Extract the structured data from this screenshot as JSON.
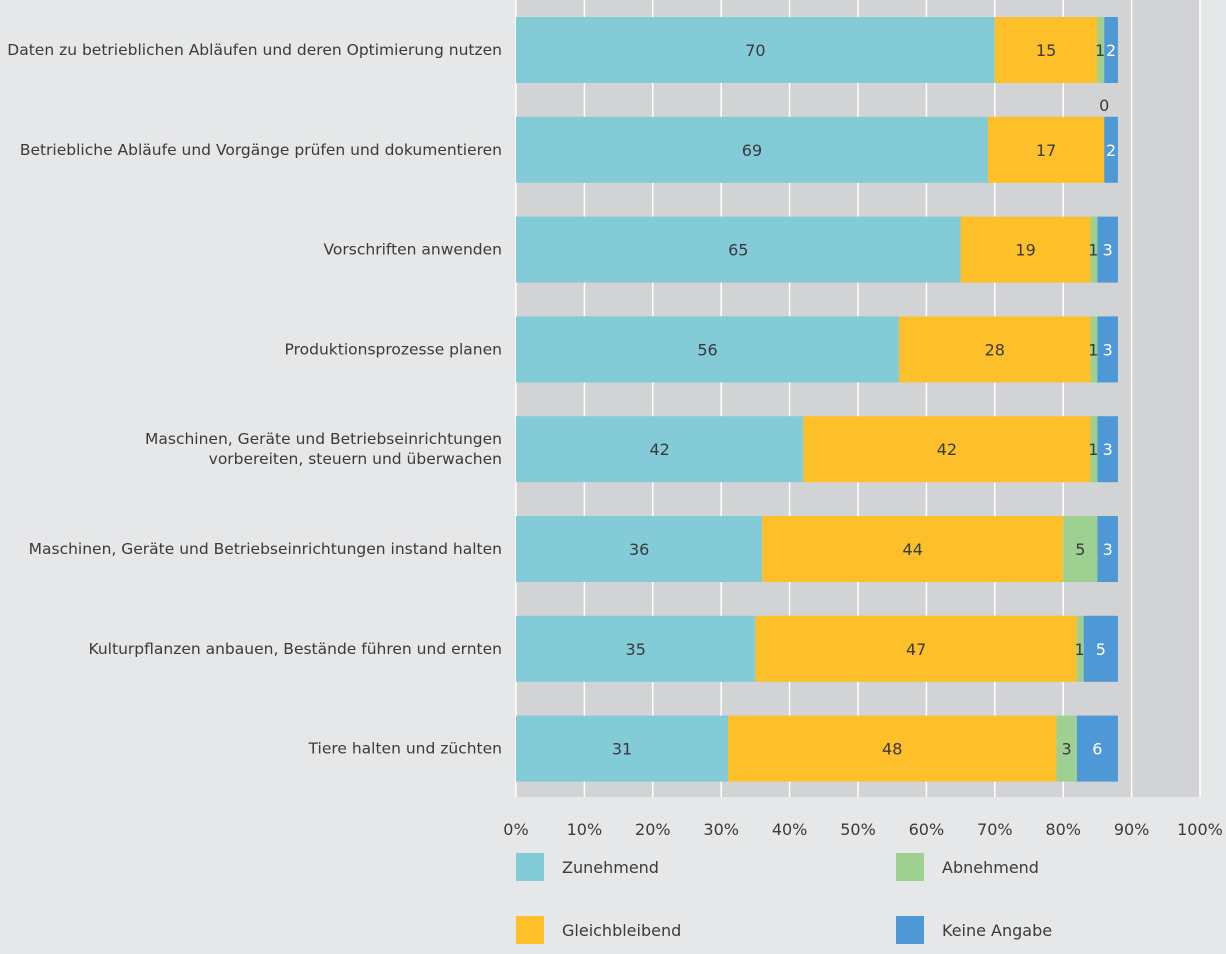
{
  "chart_data": {
    "type": "bar",
    "orientation": "horizontal",
    "stacked": true,
    "percent_stacked": true,
    "categories": [
      "Daten zu betrieblichen Abläufen und deren Optimierung nutzen",
      "Betriebliche Abläufe und Vorgänge prüfen und dokumentieren",
      "Vorschriften anwenden",
      "Produktionsprozesse planen",
      "Maschinen, Geräte und Betriebseinrichtungen\nvorbereiten, steuern und überwachen",
      "Maschinen, Geräte und Betriebseinrichtungen instand halten",
      "Kulturpflanzen anbauen, Bestände führen und ernten",
      "Tiere halten und züchten"
    ],
    "series": [
      {
        "name": "Zunehmend",
        "color": "#82cbd7",
        "values": [
          70,
          69,
          65,
          56,
          42,
          36,
          35,
          31
        ]
      },
      {
        "name": "Gleichbleibend",
        "color": "#fdc02a",
        "values": [
          15,
          17,
          19,
          28,
          42,
          44,
          47,
          48
        ]
      },
      {
        "name": "Abnehmend",
        "color": "#9ed092",
        "values": [
          1,
          0,
          1,
          1,
          1,
          5,
          1,
          3
        ]
      },
      {
        "name": "Keine Angabe",
        "color": "#4f98d6",
        "values": [
          2,
          2,
          3,
          3,
          3,
          3,
          5,
          6
        ]
      }
    ],
    "xlim": [
      0,
      100
    ],
    "x_ticks": [
      "0%",
      "10%",
      "20%",
      "30%",
      "40%",
      "50%",
      "60%",
      "70%",
      "80%",
      "90%",
      "100%"
    ],
    "grid": true,
    "legend_position": "bottom",
    "title": "",
    "xlabel": "",
    "ylabel": ""
  }
}
